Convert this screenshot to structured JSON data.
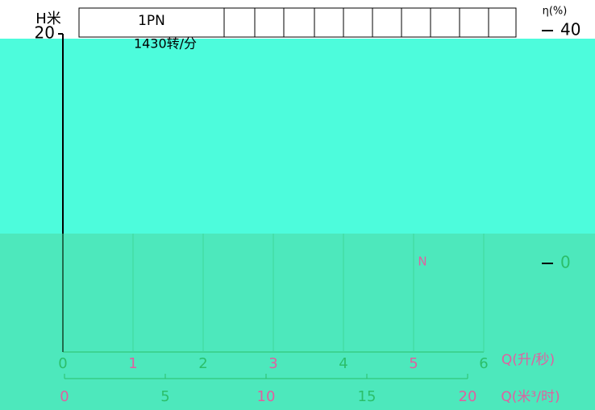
{
  "chart_data": {
    "type": "line",
    "pump_model": "1PN",
    "speed": "1430转/分",
    "ylabel": "H米",
    "y2label": "η(%)",
    "xlabel": "Q(升/秒)",
    "x2label": "Q(米³/时)",
    "annotation": "N",
    "xlim": [
      0,
      6
    ],
    "xticks": [
      0,
      1,
      2,
      3,
      4,
      5,
      6
    ],
    "x2lim": [
      0,
      20
    ],
    "x2ticks": [
      0,
      5,
      10,
      15,
      20
    ],
    "ylim": [
      0,
      20
    ],
    "yticks": [
      20
    ],
    "y2lim": [
      0,
      40
    ],
    "y2ticks": [
      0,
      40
    ],
    "grid": true
  }
}
